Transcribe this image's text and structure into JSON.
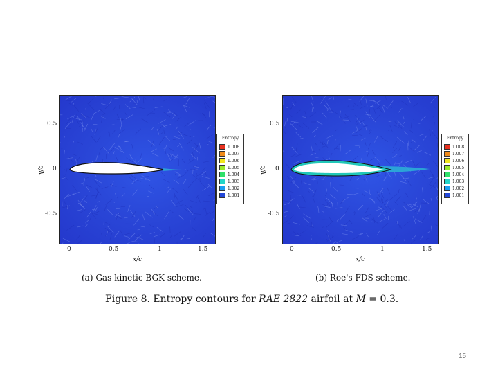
{
  "figure": {
    "caption_parts": {
      "prefix": "Figure 8.  Entropy contours for ",
      "airfoil": "RAE 2822",
      "middle": " airfoil at ",
      "mach_symbol": "M",
      "suffix": " = 0.3."
    }
  },
  "panels": [
    {
      "caption": "(a)  Gas-kinetic BGK scheme.",
      "ylabel": "y/c",
      "xlabel": "x/c",
      "xticks": [
        "0",
        "0.5",
        "1",
        "1.5"
      ],
      "yticks": [
        "0.5",
        "0",
        "-0.5"
      ],
      "legend_title": "Entropy",
      "legend_values": [
        "1.008",
        "1.007",
        "1.006",
        "1.005",
        "1.004",
        "1.003",
        "1.002",
        "1.001"
      ]
    },
    {
      "caption": "(b)  Roe's FDS scheme.",
      "ylabel": "y/c",
      "xlabel": "x/c",
      "xticks": [
        "0",
        "0.5",
        "1",
        "1.5"
      ],
      "yticks": [
        "0.5",
        "0",
        "-0.5"
      ],
      "legend_title": "Entropy",
      "legend_values": [
        "1.008",
        "1.007",
        "1.006",
        "1.005",
        "1.004",
        "1.003",
        "1.002",
        "1.001"
      ]
    }
  ],
  "legend_colors": [
    "#e8311f",
    "#f08a1a",
    "#f3e61c",
    "#9bea2a",
    "#2fe06a",
    "#23d6c8",
    "#1b9ef0",
    "#2347d8"
  ],
  "page_number": "15"
}
